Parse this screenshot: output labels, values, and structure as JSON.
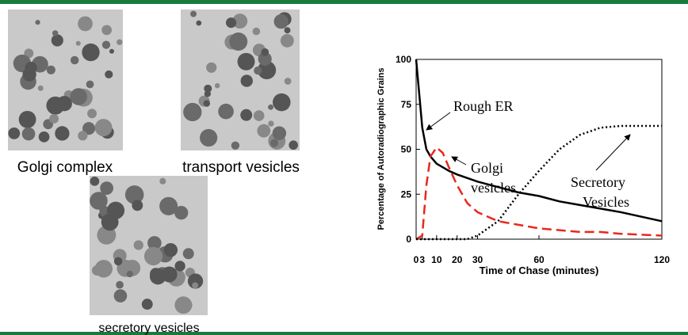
{
  "images": [
    {
      "caption": "Golgi complex"
    },
    {
      "caption": "transport vesicles"
    },
    {
      "caption": "secretory vesicles"
    }
  ],
  "chart_data": {
    "type": "line",
    "y_label": "Percentage of Autoradiographic Grains",
    "x_label": "Time of Chase (minutes)",
    "x": [
      0,
      3,
      5,
      7,
      10,
      13,
      16,
      20,
      25,
      30,
      40,
      50,
      60,
      70,
      80,
      90,
      100,
      120
    ],
    "xlim": [
      0,
      120
    ],
    "xticks": [
      0,
      3,
      10,
      20,
      30,
      60,
      120
    ],
    "ylim": [
      0,
      100
    ],
    "yticks": [
      0,
      25,
      50,
      75,
      100
    ],
    "series": [
      {
        "color": "#000000",
        "style": "solid",
        "values": [
          100,
          62,
          50,
          46,
          42,
          40,
          38,
          36,
          34,
          32,
          29,
          26,
          24,
          21,
          19,
          17,
          15,
          10
        ]
      },
      {
        "color": "#e8281c",
        "style": "dashed",
        "values": [
          0,
          2,
          30,
          46,
          51,
          48,
          40,
          30,
          20,
          15,
          10,
          8,
          6,
          5,
          4,
          4,
          3,
          2
        ]
      },
      {
        "color": "#000000",
        "style": "dotted",
        "values": [
          0,
          0,
          0,
          0,
          0,
          0,
          0,
          0,
          0,
          2,
          10,
          25,
          38,
          50,
          58,
          62,
          63,
          63
        ]
      }
    ],
    "annotations": [
      {
        "lines": [
          "Rough ER"
        ]
      },
      {
        "lines": [
          "Golgi",
          "vesicles"
        ]
      },
      {
        "lines": [
          "Secretory",
          "Vesicles"
        ]
      }
    ]
  }
}
